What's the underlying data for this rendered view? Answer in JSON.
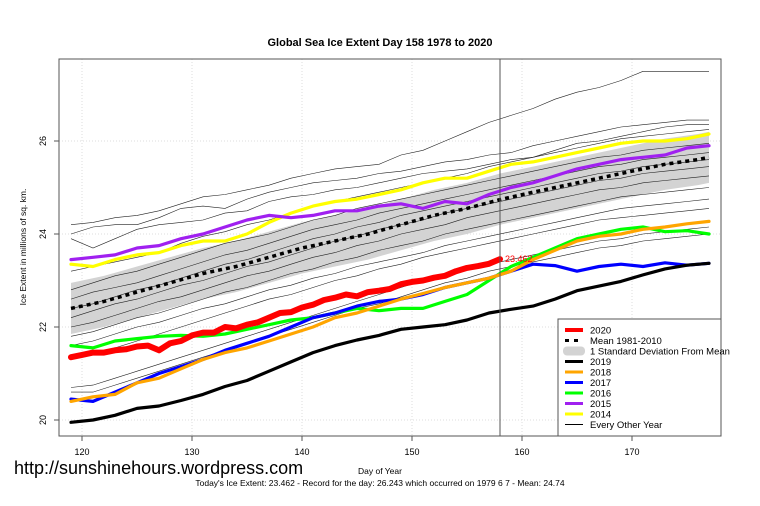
{
  "chart_data": {
    "type": "line",
    "title": "Global Sea Ice Extent Day 158 1978 to 2020",
    "xlabel": "Day of Year",
    "ylabel": "Ice Extent in millions of sq. km.",
    "xlim": [
      118,
      178
    ],
    "ylim": [
      19.7,
      27.9
    ],
    "xticks": [
      120,
      130,
      140,
      150,
      160,
      170
    ],
    "yticks": [
      20,
      22,
      24,
      26
    ],
    "grid": true,
    "current_day": 158,
    "current_value_label": "23.462",
    "legend_position": "bottom-right",
    "legend": [
      {
        "label": "2020",
        "color": "#ff0000",
        "style": "thick"
      },
      {
        "label": "Mean 1981-2010",
        "color": "#000000",
        "style": "dashed"
      },
      {
        "label": "1 Standard Deviation From Mean",
        "color": "#d3d3d3",
        "style": "band"
      },
      {
        "label": "2019",
        "color": "#000000",
        "style": "solid"
      },
      {
        "label": "2018",
        "color": "#ffa500",
        "style": "solid"
      },
      {
        "label": "2017",
        "color": "#0000ff",
        "style": "solid"
      },
      {
        "label": "2016",
        "color": "#00ff00",
        "style": "solid"
      },
      {
        "label": "2015",
        "color": "#a020f0",
        "style": "solid"
      },
      {
        "label": "2014",
        "color": "#ffff00",
        "style": "solid"
      },
      {
        "label": "Every Other Year",
        "color": "#000000",
        "style": "thin"
      }
    ],
    "mean": {
      "name": "Mean 1981-2010",
      "x": [
        119,
        122,
        125,
        128,
        131,
        134,
        137,
        140,
        143,
        146,
        149,
        152,
        155,
        158,
        161,
        164,
        167,
        170,
        173,
        176,
        177
      ],
      "values": [
        22.4,
        22.55,
        22.75,
        22.95,
        23.15,
        23.3,
        23.5,
        23.7,
        23.85,
        24.0,
        24.2,
        24.4,
        24.55,
        24.74,
        24.9,
        25.05,
        25.2,
        25.35,
        25.5,
        25.6,
        25.65
      ]
    },
    "std_band": {
      "x": [
        119,
        122,
        125,
        128,
        131,
        134,
        137,
        140,
        143,
        146,
        149,
        152,
        155,
        158,
        161,
        164,
        167,
        170,
        173,
        176,
        177
      ],
      "lower": [
        21.85,
        22.0,
        22.2,
        22.4,
        22.6,
        22.75,
        22.95,
        23.15,
        23.3,
        23.45,
        23.65,
        23.85,
        24.0,
        24.2,
        24.35,
        24.5,
        24.65,
        24.8,
        24.95,
        25.05,
        25.1
      ],
      "upper": [
        22.95,
        23.1,
        23.3,
        23.5,
        23.7,
        23.85,
        24.05,
        24.25,
        24.4,
        24.55,
        24.75,
        24.95,
        25.1,
        25.3,
        25.45,
        25.6,
        25.75,
        25.9,
        26.05,
        26.15,
        26.2
      ]
    },
    "series": [
      {
        "name": "2020",
        "color": "#ff0000",
        "x": [
          119,
          120,
          121,
          122,
          123,
          124,
          125,
          126,
          127,
          128,
          129,
          130,
          131,
          132,
          133,
          134,
          135,
          136,
          137,
          138,
          139,
          140,
          141,
          142,
          143,
          144,
          145,
          146,
          147,
          148,
          149,
          150,
          151,
          152,
          153,
          154,
          155,
          156,
          157,
          158
        ],
        "values": [
          21.35,
          21.4,
          21.45,
          21.45,
          21.5,
          21.52,
          21.58,
          21.6,
          21.5,
          21.65,
          21.7,
          21.82,
          21.88,
          21.88,
          22.0,
          21.97,
          22.05,
          22.1,
          22.2,
          22.3,
          22.32,
          22.42,
          22.48,
          22.58,
          22.63,
          22.7,
          22.66,
          22.75,
          22.78,
          22.82,
          22.92,
          22.97,
          23.0,
          23.06,
          23.1,
          23.2,
          23.27,
          23.31,
          23.36,
          23.46
        ]
      },
      {
        "name": "2019",
        "color": "#000000",
        "x": [
          119,
          121,
          123,
          125,
          127,
          129,
          131,
          133,
          135,
          137,
          139,
          141,
          143,
          145,
          147,
          149,
          151,
          153,
          155,
          157,
          159,
          161,
          163,
          165,
          167,
          169,
          171,
          173,
          175,
          177
        ],
        "values": [
          19.95,
          20.0,
          20.1,
          20.25,
          20.3,
          20.42,
          20.55,
          20.72,
          20.85,
          21.05,
          21.25,
          21.45,
          21.6,
          21.72,
          21.82,
          21.95,
          22.0,
          22.05,
          22.15,
          22.3,
          22.38,
          22.45,
          22.6,
          22.78,
          22.88,
          22.98,
          23.12,
          23.25,
          23.33,
          23.37
        ]
      },
      {
        "name": "2018",
        "color": "#ffa500",
        "x": [
          119,
          121,
          123,
          125,
          127,
          129,
          131,
          133,
          135,
          137,
          139,
          141,
          143,
          145,
          147,
          149,
          151,
          153,
          155,
          157,
          159,
          161,
          163,
          165,
          167,
          169,
          171,
          173,
          175,
          177
        ],
        "values": [
          20.4,
          20.5,
          20.55,
          20.8,
          20.9,
          21.1,
          21.3,
          21.45,
          21.55,
          21.7,
          21.85,
          22.0,
          22.2,
          22.3,
          22.45,
          22.6,
          22.72,
          22.85,
          22.95,
          23.05,
          23.2,
          23.45,
          23.65,
          23.85,
          23.95,
          24.0,
          24.1,
          24.15,
          24.22,
          24.27
        ]
      },
      {
        "name": "2017",
        "color": "#0000ff",
        "x": [
          119,
          121,
          123,
          125,
          127,
          129,
          131,
          133,
          135,
          137,
          139,
          141,
          143,
          145,
          147,
          149,
          151,
          153,
          155,
          157,
          159,
          161,
          163,
          165,
          167,
          169,
          171,
          173,
          175,
          177
        ],
        "values": [
          20.45,
          20.4,
          20.6,
          20.8,
          21.0,
          21.15,
          21.3,
          21.5,
          21.65,
          21.8,
          22.0,
          22.2,
          22.3,
          22.45,
          22.55,
          22.6,
          22.7,
          22.85,
          22.95,
          23.05,
          23.2,
          23.35,
          23.32,
          23.2,
          23.3,
          23.35,
          23.3,
          23.38,
          23.33,
          23.37
        ]
      },
      {
        "name": "2016",
        "color": "#00ff00",
        "x": [
          119,
          121,
          123,
          125,
          127,
          129,
          131,
          133,
          135,
          137,
          139,
          141,
          143,
          145,
          147,
          149,
          151,
          153,
          155,
          157,
          159,
          161,
          163,
          165,
          167,
          169,
          171,
          173,
          175,
          177
        ],
        "values": [
          21.6,
          21.55,
          21.7,
          21.75,
          21.8,
          21.82,
          21.8,
          21.85,
          21.95,
          22.05,
          22.15,
          22.2,
          22.3,
          22.4,
          22.35,
          22.4,
          22.4,
          22.55,
          22.7,
          23.0,
          23.3,
          23.5,
          23.7,
          23.9,
          24.0,
          24.1,
          24.15,
          24.05,
          24.07,
          24.0
        ]
      },
      {
        "name": "2015",
        "color": "#a020f0",
        "x": [
          119,
          121,
          123,
          125,
          127,
          129,
          131,
          133,
          135,
          137,
          139,
          141,
          143,
          145,
          147,
          149,
          151,
          153,
          155,
          157,
          159,
          161,
          163,
          165,
          167,
          169,
          171,
          173,
          175,
          177
        ],
        "values": [
          23.45,
          23.5,
          23.55,
          23.7,
          23.75,
          23.9,
          24.0,
          24.15,
          24.3,
          24.4,
          24.35,
          24.4,
          24.5,
          24.5,
          24.6,
          24.65,
          24.55,
          24.7,
          24.65,
          24.85,
          25.0,
          25.1,
          25.25,
          25.4,
          25.5,
          25.6,
          25.65,
          25.7,
          25.85,
          25.9
        ]
      },
      {
        "name": "2014",
        "color": "#ffff00",
        "x": [
          119,
          121,
          123,
          125,
          127,
          129,
          131,
          133,
          135,
          137,
          139,
          141,
          143,
          145,
          147,
          149,
          151,
          153,
          155,
          157,
          159,
          161,
          163,
          165,
          167,
          169,
          171,
          173,
          175,
          177
        ],
        "values": [
          23.35,
          23.3,
          23.45,
          23.55,
          23.6,
          23.75,
          23.85,
          23.85,
          24.0,
          24.25,
          24.45,
          24.6,
          24.7,
          24.75,
          24.85,
          24.95,
          25.1,
          25.2,
          25.2,
          25.35,
          25.5,
          25.55,
          25.65,
          25.75,
          25.85,
          25.95,
          26.0,
          26.0,
          26.05,
          26.15
        ]
      }
    ],
    "other_years": [
      {
        "values": [
          24.2,
          24.25,
          24.35,
          24.4,
          24.5,
          24.65,
          24.8,
          24.85,
          24.95,
          25.05,
          25.2,
          25.3,
          25.4,
          25.45,
          25.5,
          25.7,
          25.8,
          26.0,
          26.2,
          26.4,
          26.55,
          26.7,
          26.9,
          27.05,
          27.15,
          27.3,
          27.5,
          27.5,
          27.5,
          27.5
        ]
      },
      {
        "values": [
          24.0,
          24.15,
          24.2,
          24.2,
          24.35,
          24.55,
          24.6,
          24.55,
          24.75,
          24.9,
          25.0,
          25.1,
          25.15,
          25.2,
          25.3,
          25.35,
          25.45,
          25.55,
          25.6,
          25.7,
          25.75,
          25.9,
          26.0,
          26.1,
          26.2,
          26.3,
          26.35,
          26.4,
          26.45,
          26.45
        ]
      },
      {
        "values": [
          23.9,
          23.7,
          23.9,
          24.1,
          24.2,
          24.25,
          24.3,
          24.45,
          24.5,
          24.7,
          24.8,
          24.85,
          24.95,
          25.0,
          25.1,
          25.2,
          25.3,
          25.35,
          25.4,
          25.5,
          25.6,
          25.65,
          25.8,
          25.95,
          26.0,
          26.1,
          26.2,
          26.3,
          26.35,
          26.35
        ]
      },
      {
        "values": [
          23.2,
          23.3,
          23.4,
          23.5,
          23.6,
          23.8,
          23.95,
          24.05,
          24.2,
          24.3,
          24.45,
          24.6,
          24.7,
          24.8,
          24.9,
          25.0,
          25.1,
          25.2,
          25.3,
          25.45,
          25.55,
          25.65,
          25.75,
          25.85,
          25.95,
          26.05,
          26.1,
          26.15,
          26.2,
          26.25
        ]
      },
      {
        "values": [
          22.8,
          22.95,
          23.1,
          23.2,
          23.35,
          23.5,
          23.65,
          23.8,
          23.9,
          24.0,
          24.15,
          24.3,
          24.4,
          24.55,
          24.65,
          24.75,
          24.85,
          24.95,
          25.05,
          25.15,
          25.25,
          25.35,
          25.45,
          25.55,
          25.65,
          25.7,
          25.8,
          25.85,
          25.9,
          25.95
        ]
      },
      {
        "values": [
          22.6,
          22.75,
          22.85,
          22.95,
          23.1,
          23.25,
          23.4,
          23.55,
          23.65,
          23.8,
          23.95,
          24.1,
          24.2,
          24.3,
          24.45,
          24.55,
          24.65,
          24.75,
          24.85,
          24.95,
          25.05,
          25.15,
          25.25,
          25.35,
          25.45,
          25.5,
          25.6,
          25.65,
          25.7,
          25.75
        ]
      },
      {
        "values": [
          22.4,
          22.5,
          22.65,
          22.8,
          22.9,
          23.05,
          23.2,
          23.35,
          23.45,
          23.6,
          23.75,
          23.9,
          24.0,
          24.15,
          24.25,
          24.4,
          24.5,
          24.6,
          24.7,
          24.8,
          24.9,
          25.0,
          25.1,
          25.2,
          25.3,
          25.35,
          25.45,
          25.5,
          25.55,
          25.6
        ]
      },
      {
        "values": [
          22.2,
          22.35,
          22.5,
          22.6,
          22.75,
          22.9,
          23.0,
          23.15,
          23.3,
          23.4,
          23.55,
          23.7,
          23.85,
          23.95,
          24.1,
          24.2,
          24.3,
          24.45,
          24.55,
          24.65,
          24.75,
          24.85,
          24.95,
          25.05,
          25.15,
          25.2,
          25.3,
          25.35,
          25.4,
          25.45
        ]
      },
      {
        "values": [
          22.0,
          22.1,
          22.25,
          22.4,
          22.55,
          22.65,
          22.8,
          22.95,
          23.1,
          23.2,
          23.35,
          23.5,
          23.6,
          23.75,
          23.85,
          24.0,
          24.1,
          24.2,
          24.35,
          24.45,
          24.55,
          24.65,
          24.75,
          24.85,
          24.95,
          25.0,
          25.1,
          25.15,
          25.2,
          25.25
        ]
      },
      {
        "values": [
          21.8,
          21.9,
          22.05,
          22.2,
          22.3,
          22.45,
          22.6,
          22.75,
          22.85,
          23.0,
          23.15,
          23.25,
          23.4,
          23.5,
          23.65,
          23.75,
          23.85,
          24.0,
          24.1,
          24.2,
          24.3,
          24.4,
          24.5,
          24.6,
          24.7,
          24.8,
          24.85,
          24.9,
          24.95,
          25.0
        ]
      },
      {
        "values": [
          21.6,
          21.7,
          21.85,
          22.0,
          22.1,
          22.25,
          22.4,
          22.5,
          22.65,
          22.8,
          22.9,
          23.05,
          23.15,
          23.3,
          23.4,
          23.5,
          23.6,
          23.75,
          23.85,
          23.95,
          24.05,
          24.15,
          24.25,
          24.35,
          24.45,
          24.55,
          24.6,
          24.65,
          24.7,
          24.75
        ]
      },
      {
        "values": [
          21.3,
          21.4,
          21.55,
          21.7,
          21.85,
          22.0,
          22.15,
          22.3,
          22.45,
          22.6,
          22.7,
          22.85,
          23.0,
          23.1,
          23.25,
          23.35,
          23.5,
          23.6,
          23.7,
          23.8,
          23.9,
          24.0,
          24.1,
          24.2,
          24.3,
          24.35,
          24.4,
          24.45,
          24.5,
          24.55
        ]
      },
      {
        "values": [
          20.7,
          20.75,
          20.9,
          21.05,
          21.2,
          21.35,
          21.5,
          21.65,
          21.8,
          21.95,
          22.1,
          22.25,
          22.4,
          22.55,
          22.7,
          22.85,
          23.0,
          23.1,
          23.25,
          23.35,
          23.45,
          23.55,
          23.65,
          23.75,
          23.85,
          23.9,
          24.0,
          24.05,
          24.1,
          24.15
        ]
      },
      {
        "values": [
          20.6,
          20.6,
          20.75,
          20.9,
          21.05,
          21.2,
          21.35,
          21.5,
          21.65,
          21.8,
          21.95,
          22.1,
          22.25,
          22.4,
          22.5,
          22.65,
          22.8,
          22.95,
          23.05,
          23.2,
          23.3,
          23.4,
          23.5,
          23.6,
          23.7,
          23.75,
          23.85,
          23.9,
          23.95,
          24.0
        ]
      }
    ],
    "other_years_x": [
      119,
      121,
      123,
      125,
      127,
      129,
      131,
      133,
      135,
      137,
      139,
      141,
      143,
      145,
      147,
      149,
      151,
      153,
      155,
      157,
      159,
      161,
      163,
      165,
      167,
      169,
      171,
      173,
      175,
      177
    ]
  },
  "footer": {
    "watermark": "http://sunshinehours.wordpress.com",
    "caption": "Today's Ice Extent: 23.462  - Record for the day: 26.243 which occurred on 1979 6 7  - Mean: 24.74"
  }
}
